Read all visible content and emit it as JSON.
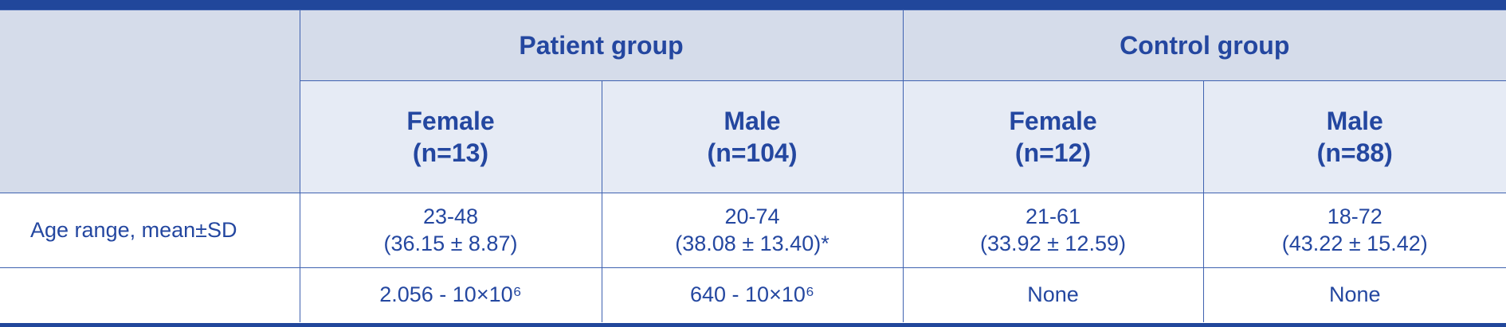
{
  "table": {
    "groups": [
      "Patient group",
      "Control group"
    ],
    "subgroups": [
      [
        "Female",
        "(n=13)"
      ],
      [
        "Male",
        "(n=104)"
      ],
      [
        "Female",
        "(n=12)"
      ],
      [
        "Male",
        "(n=88)"
      ]
    ],
    "rows": [
      {
        "label": "Age range, mean±SD",
        "cells": [
          [
            "23-48",
            "(36.15 ± 8.87)"
          ],
          [
            "20-74",
            "(38.08 ± 13.40)*"
          ],
          [
            "21-61",
            "(33.92 ± 12.59)"
          ],
          [
            "18-72",
            "(43.22 ± 15.42)"
          ]
        ]
      },
      {
        "cells": [
          [
            "2.056 - 10×10⁶"
          ],
          [
            "640 - 10×10⁶"
          ],
          [
            "None"
          ],
          [
            "None"
          ]
        ]
      }
    ]
  }
}
